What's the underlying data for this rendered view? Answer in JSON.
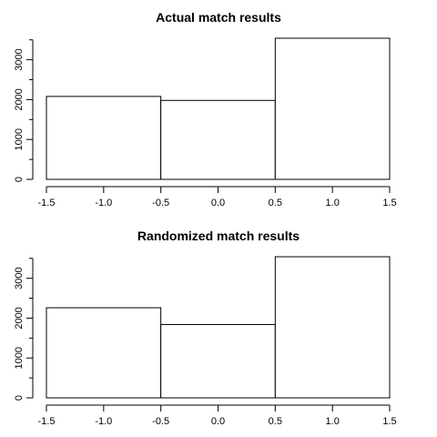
{
  "chart_data": [
    {
      "type": "bar",
      "title": "Actual match results",
      "xlabel": "",
      "ylabel": "",
      "bins": [
        {
          "x0": -1.5,
          "x1": -0.5,
          "value": 2080
        },
        {
          "x0": -0.5,
          "x1": 0.5,
          "value": 1980
        },
        {
          "x0": 0.5,
          "x1": 1.5,
          "value": 3540
        }
      ],
      "xlim": [
        -1.5,
        1.5
      ],
      "ylim": [
        0,
        3540
      ],
      "xticks": [
        -1.5,
        -1.0,
        -0.5,
        0.0,
        0.5,
        1.0,
        1.5
      ],
      "xtick_labels": [
        "-1.5",
        "-1.0",
        "-0.5",
        "0.0",
        "0.5",
        "1.0",
        "1.5"
      ],
      "yticks_major": [
        0,
        1000,
        2000,
        3000
      ],
      "ytick_labels": [
        "0",
        "1000",
        "2000",
        "3000"
      ],
      "yticks_minor": [
        500,
        1500,
        2500,
        3500
      ],
      "grid": false
    },
    {
      "type": "bar",
      "title": "Randomized match results",
      "xlabel": "",
      "ylabel": "",
      "bins": [
        {
          "x0": -1.5,
          "x1": -0.5,
          "value": 2260
        },
        {
          "x0": -0.5,
          "x1": 0.5,
          "value": 1840
        },
        {
          "x0": 0.5,
          "x1": 1.5,
          "value": 3540
        }
      ],
      "xlim": [
        -1.5,
        1.5
      ],
      "ylim": [
        0,
        3540
      ],
      "xticks": [
        -1.5,
        -1.0,
        -0.5,
        0.0,
        0.5,
        1.0,
        1.5
      ],
      "xtick_labels": [
        "-1.5",
        "-1.0",
        "-0.5",
        "0.0",
        "0.5",
        "1.0",
        "1.5"
      ],
      "yticks_major": [
        0,
        1000,
        2000,
        3000
      ],
      "ytick_labels": [
        "0",
        "1000",
        "2000",
        "3000"
      ],
      "yticks_minor": [
        500,
        1500,
        2500,
        3500
      ],
      "grid": false
    }
  ]
}
